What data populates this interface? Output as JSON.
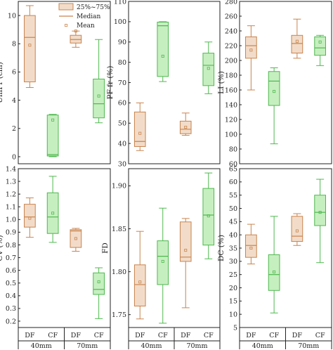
{
  "colors": {
    "df": "#c8844e",
    "df_fill": "#f2dcc9",
    "cf": "#4fb84f",
    "cf_fill": "#c6efc0"
  },
  "legend": {
    "box": "25%~75%",
    "median": "Median",
    "mean": "Mean"
  },
  "chart_data": [
    {
      "type": "box",
      "ylabel": "UniFr (cm)",
      "ylim": [
        -0.5,
        11
      ],
      "yticks": [
        0,
        2,
        4,
        6,
        8,
        10
      ],
      "grid": false,
      "categories": [
        "DF",
        "CF",
        "DF",
        "CF"
      ],
      "groups": [
        "40mm",
        "70mm"
      ],
      "boxes": [
        {
          "min": 4.9,
          "q1": 5.3,
          "median": 8.45,
          "q3": 10.0,
          "max": 10.7,
          "mean": 7.9
        },
        {
          "min": 0.0,
          "q1": 0.05,
          "median": 0.15,
          "q3": 2.95,
          "max": 3.0,
          "mean": 2.6
        },
        {
          "min": 7.75,
          "q1": 8.05,
          "median": 8.3,
          "q3": 8.6,
          "max": 8.9,
          "mean": 8.9
        },
        {
          "min": 2.4,
          "q1": 2.75,
          "median": 3.75,
          "q3": 5.5,
          "max": 8.3,
          "mean": 4.3
        }
      ]
    },
    {
      "type": "box",
      "ylabel": "PF-fr (%)",
      "ylim": [
        30,
        110
      ],
      "yticks": [
        30,
        40,
        50,
        60,
        70,
        80,
        90,
        100,
        110
      ],
      "grid": false,
      "categories": [
        "DF",
        "CF",
        "DF",
        "CF"
      ],
      "groups": [
        "40mm",
        "70mm"
      ],
      "boxes": [
        {
          "min": 36.5,
          "q1": 38.5,
          "median": 41.0,
          "q3": 55.5,
          "max": 60.0,
          "mean": 45.0
        },
        {
          "min": 70.5,
          "q1": 73.0,
          "median": 98.0,
          "q3": 99.8,
          "max": 100.0,
          "mean": 83.0
        },
        {
          "min": 44.0,
          "q1": 44.8,
          "median": 47.0,
          "q3": 51.0,
          "max": 55.0,
          "mean": 48.0
        },
        {
          "min": 64.5,
          "q1": 68.5,
          "median": 78.5,
          "q3": 84.5,
          "max": 90.0,
          "mean": 77.0
        }
      ]
    },
    {
      "type": "box",
      "ylabel": "LI (%)",
      "ylim": [
        60,
        280
      ],
      "yticks": [
        60,
        80,
        100,
        120,
        140,
        160,
        180,
        200,
        220,
        240,
        260,
        280
      ],
      "grid": false,
      "categories": [
        "DF",
        "CF",
        "DF",
        "CF"
      ],
      "groups": [
        "40mm",
        "70mm"
      ],
      "boxes": [
        {
          "min": 160,
          "q1": 203,
          "median": 220,
          "q3": 232,
          "max": 247,
          "mean": 214
        },
        {
          "min": 87,
          "q1": 139,
          "median": 172,
          "q3": 185,
          "max": 190,
          "mean": 158
        },
        {
          "min": 203,
          "q1": 210,
          "median": 223,
          "q3": 234,
          "max": 256,
          "mean": 226
        },
        {
          "min": 193,
          "q1": 207,
          "median": 217,
          "q3": 232,
          "max": 234,
          "mean": 225
        }
      ]
    },
    {
      "type": "box",
      "ylabel": "CV (%)",
      "ylim": [
        0.15,
        1.4
      ],
      "yticks": [
        0.2,
        0.3,
        0.4,
        0.5,
        0.6,
        0.7,
        0.8,
        0.9,
        1.0,
        1.1,
        1.2,
        1.3,
        1.4
      ],
      "grid": false,
      "categories": [
        "DF",
        "CF",
        "DF",
        "CF"
      ],
      "groups": [
        "40mm",
        "70mm"
      ],
      "boxes": [
        {
          "min": 0.86,
          "q1": 0.94,
          "median": 1.02,
          "q3": 1.12,
          "max": 1.17,
          "mean": 1.01
        },
        {
          "min": 0.82,
          "q1": 0.89,
          "median": 1.02,
          "q3": 1.21,
          "max": 1.34,
          "mean": 1.05
        },
        {
          "min": 0.75,
          "q1": 0.78,
          "median": 0.91,
          "q3": 0.92,
          "max": 0.93,
          "mean": 0.85
        },
        {
          "min": 0.22,
          "q1": 0.41,
          "median": 0.45,
          "q3": 0.58,
          "max": 0.62,
          "mean": 0.51
        }
      ]
    },
    {
      "type": "box",
      "ylabel": "FD",
      "ylim": [
        1.735,
        1.92
      ],
      "yticks": [
        1.75,
        1.8,
        1.85,
        1.9
      ],
      "ytick_labels": [
        "1.75",
        "1.80",
        "1.85",
        "1.90"
      ],
      "grid": false,
      "categories": [
        "DF",
        "CF",
        "DF",
        "CF"
      ],
      "groups": [
        "40mm",
        "70mm"
      ],
      "boxes": [
        {
          "min": 1.745,
          "q1": 1.76,
          "median": 1.785,
          "q3": 1.808,
          "max": 1.847,
          "mean": 1.788
        },
        {
          "min": 1.74,
          "q1": 1.785,
          "median": 1.818,
          "q3": 1.836,
          "max": 1.874,
          "mean": 1.812
        },
        {
          "min": 1.758,
          "q1": 1.812,
          "median": 1.817,
          "q3": 1.858,
          "max": 1.862,
          "mean": 1.825
        },
        {
          "min": 1.815,
          "q1": 1.831,
          "median": 1.866,
          "q3": 1.897,
          "max": 1.915,
          "mean": 1.865
        }
      ]
    },
    {
      "type": "box",
      "ylabel": "DC (%)",
      "ylim": [
        5,
        65
      ],
      "yticks": [
        5,
        10,
        15,
        20,
        25,
        30,
        35,
        40,
        45,
        50,
        55,
        60,
        65
      ],
      "grid": false,
      "categories": [
        "DF",
        "CF",
        "DF",
        "CF"
      ],
      "groups": [
        "40mm",
        "70mm"
      ],
      "boxes": [
        {
          "min": 29,
          "q1": 31.5,
          "median": 36,
          "q3": 40,
          "max": 44,
          "mean": 35
        },
        {
          "min": 10.5,
          "q1": 19,
          "median": 25,
          "q3": 32.5,
          "max": 47,
          "mean": 26
        },
        {
          "min": 36,
          "q1": 37.5,
          "median": 39.5,
          "q3": 47,
          "max": 48,
          "mean": 41.5
        },
        {
          "min": 29.5,
          "q1": 43.5,
          "median": 48.5,
          "q3": 55,
          "max": 61,
          "mean": 48.5
        }
      ]
    }
  ]
}
